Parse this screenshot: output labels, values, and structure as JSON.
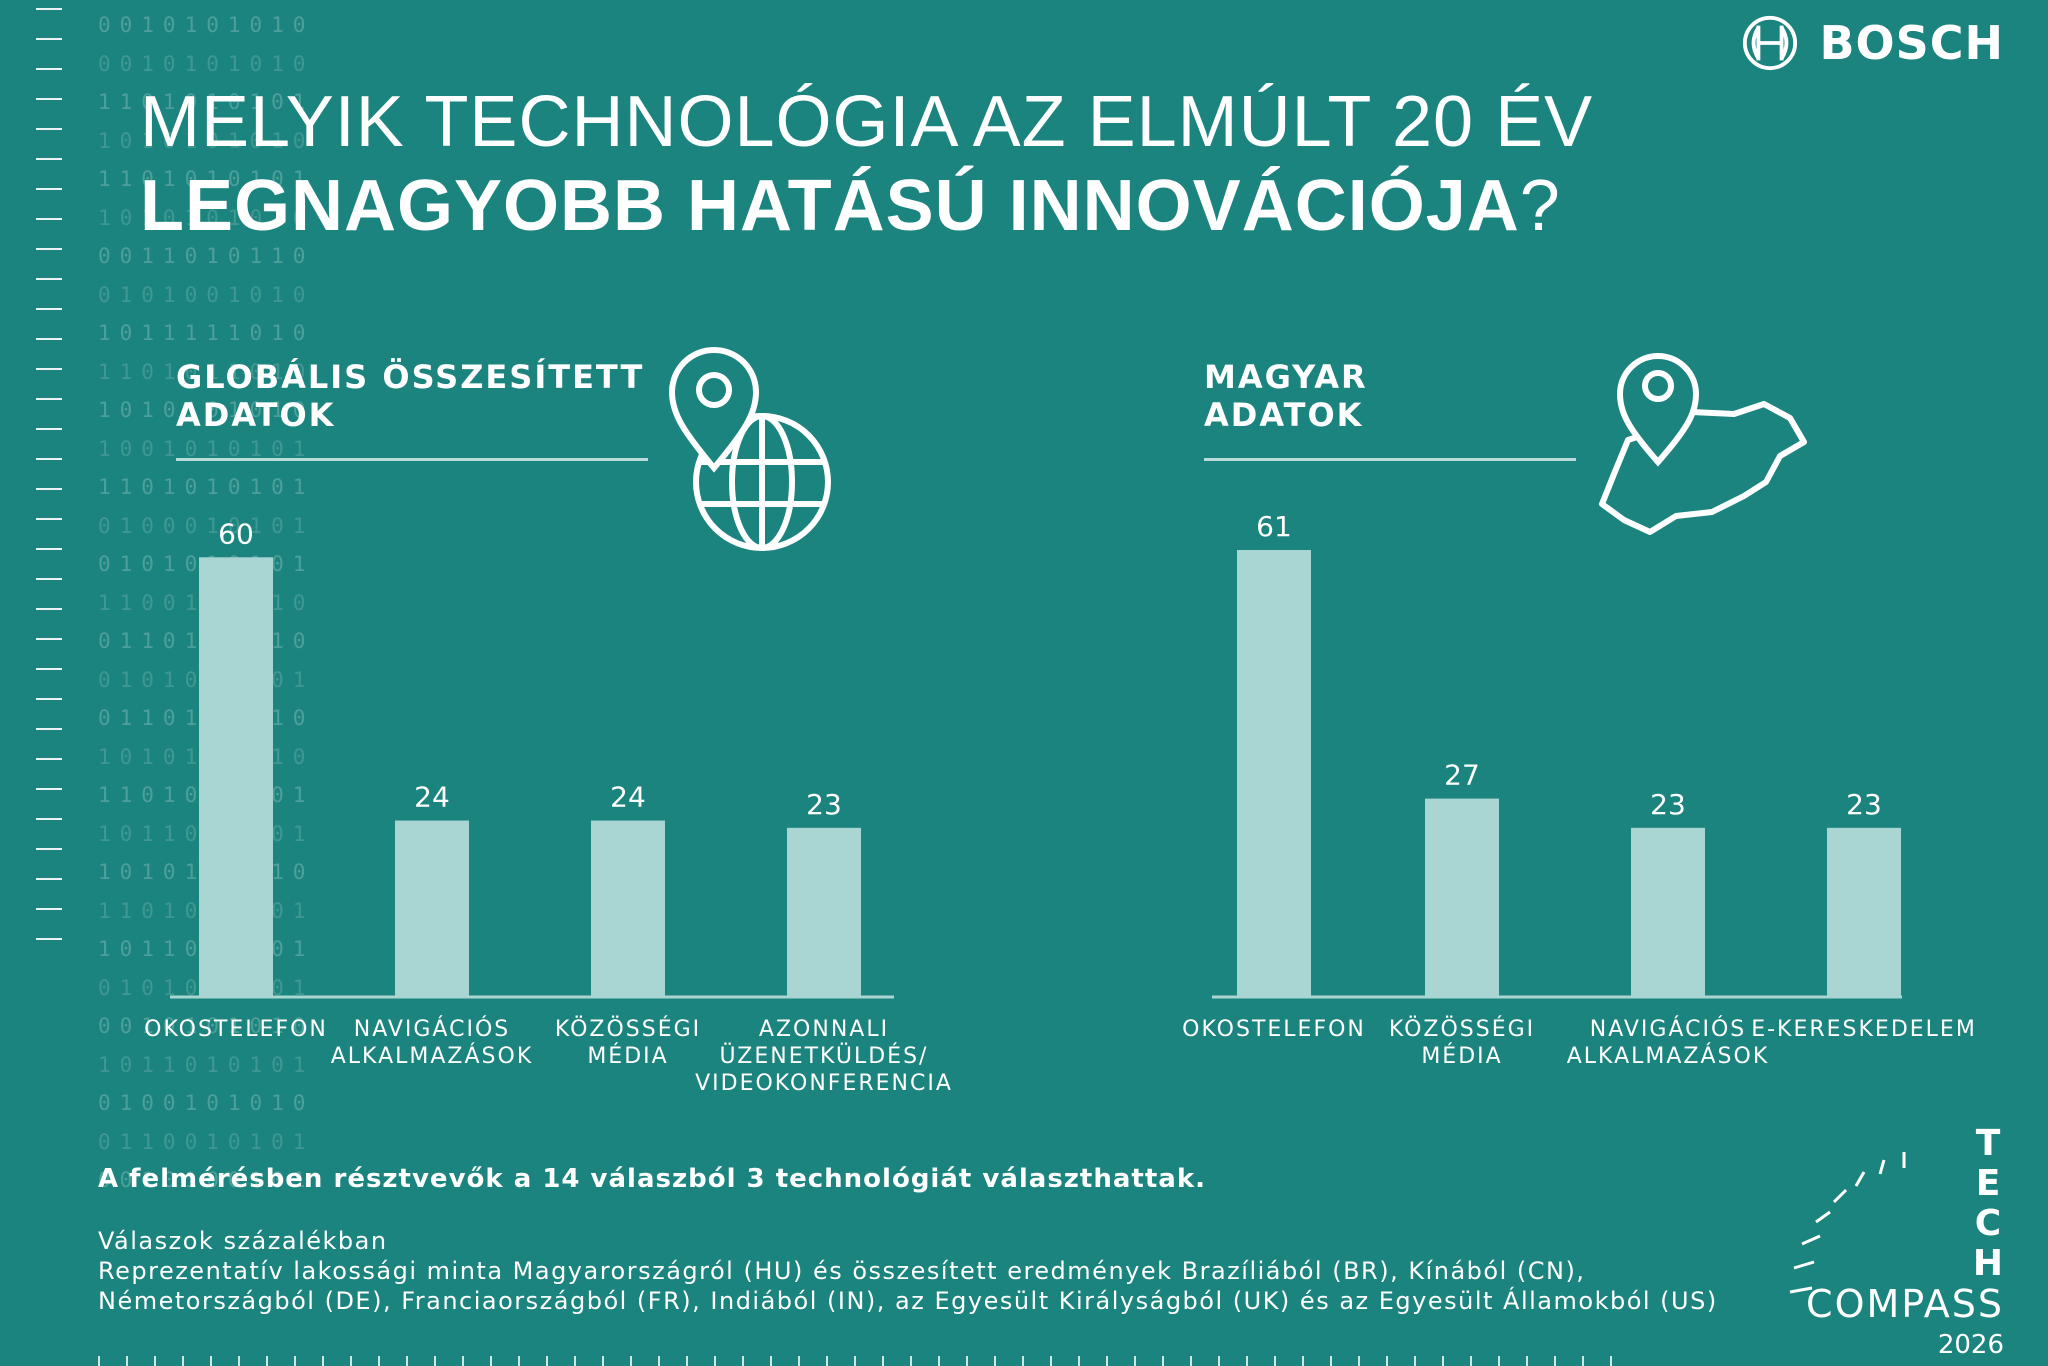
{
  "brand": {
    "name": "BOSCH",
    "logo_icon": "bosch-armature-icon"
  },
  "title": {
    "line1": "MELYIK TECHNOLÓGIA AZ ELMÚLT 20 ÉV",
    "line2": "LEGNAGYOBB HATÁSÚ INNOVÁCIÓJA",
    "question_mark": "?"
  },
  "colors": {
    "background": "#1c847e",
    "bar": "#a9d6d3",
    "text": "#ffffff"
  },
  "binary_rows": [
    "0010101010",
    "0010101010",
    "1101010101",
    "1010101010",
    "1101010101",
    "1010101010",
    "0011010110",
    "0101001010",
    "1011111010",
    "1101011010",
    "1010101010",
    "1001010101",
    "1101010101",
    "0100010101",
    "0101010101",
    "1100101010",
    "0110101010",
    "0101010101",
    "0110101010",
    "1010101010",
    "1101010101",
    "1011010101",
    "1010101010",
    "1101010101",
    "1011010101",
    "0101010101",
    "0010101010",
    "1011010101",
    "0100101010",
    "0110010101",
    "0010100101"
  ],
  "chart_data": [
    {
      "type": "bar",
      "title": "GLOBÁLIS ÖSSZESÍTETT ADATOK",
      "title_lines": [
        "GLOBÁLIS ÖSSZESÍTETT",
        "ADATOK"
      ],
      "icon": "globe-location-pin-icon",
      "categories": [
        "OKOSTELEFON",
        "NAVIGÁCIÓS ALKALMAZÁSOK",
        "KÖZÖSSÉGI MÉDIA",
        "AZONNALI ÜZENETKÜLDÉS/ VIDEOKONFERENCIA"
      ],
      "category_lines": [
        [
          "OKOSTELEFON"
        ],
        [
          "NAVIGÁCIÓS",
          "ALKALMAZÁSOK"
        ],
        [
          "KÖZÖSSÉGI",
          "MÉDIA"
        ],
        [
          "AZONNALI",
          "ÜZENETKÜLDÉS/",
          "VIDEOKONFERENCIA"
        ]
      ],
      "values": [
        60,
        24,
        24,
        23
      ],
      "value_labels": [
        "60",
        "24",
        "24",
        "23"
      ],
      "ylim": [
        0,
        61
      ],
      "grid": false,
      "legend": "none"
    },
    {
      "type": "bar",
      "title": "MAGYAR ADATOK",
      "title_lines": [
        "MAGYAR",
        "ADATOK"
      ],
      "icon": "hungary-map-location-pin-icon",
      "categories": [
        "OKOSTELEFON",
        "KÖZÖSSÉGI MÉDIA",
        "NAVIGÁCIÓS ALKALMAZÁSOK",
        "E-KERESKEDELEM"
      ],
      "category_lines": [
        [
          "OKOSTELEFON"
        ],
        [
          "KÖZÖSSÉGI",
          "MÉDIA"
        ],
        [
          "NAVIGÁCIÓS",
          "ALKALMAZÁSOK"
        ],
        [
          "E-KERESKEDELEM"
        ]
      ],
      "values": [
        61,
        27,
        23,
        23
      ],
      "value_labels": [
        "61",
        "27",
        "23",
        "23"
      ],
      "ylim": [
        0,
        61
      ],
      "grid": false,
      "legend": "none"
    }
  ],
  "footnote": {
    "bold": "A felmérésben résztvevők a 14 válaszból 3 technológiát választhattak.",
    "line1": "Válaszok százalékban",
    "line2": "Reprezentatív lakossági minta Magyarországról (HU) és összesített eredmények Brazíliából (BR), Kínából (CN),",
    "line3": "Németországból (DE), Franciaországból (FR), Indiából (IN), az Egyesült Királyságból (UK) és az Egyesült Államokból (US)"
  },
  "tech_compass": {
    "vertical": [
      "T",
      "E",
      "C",
      "H"
    ],
    "word": "COMPASS",
    "year": "2026",
    "icon": "compass-gauge-icon"
  }
}
